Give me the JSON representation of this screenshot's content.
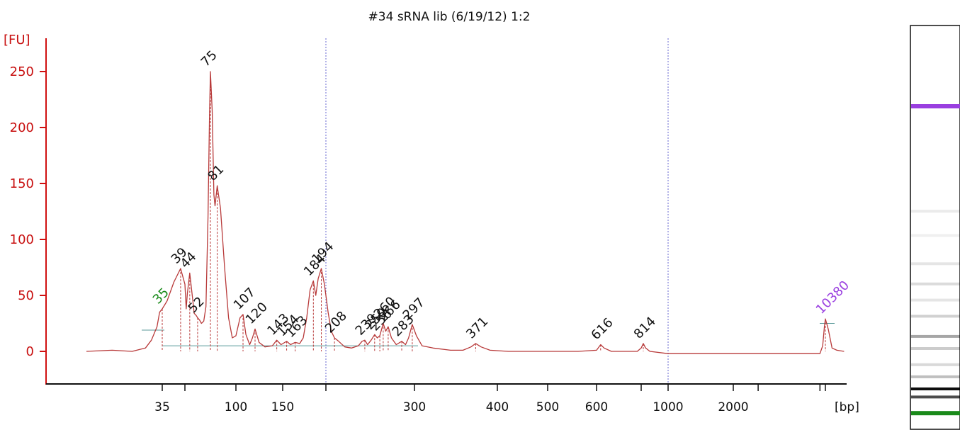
{
  "chart_data": {
    "type": "line",
    "title": "#34 sRNA lib (6/19/12) 1:2",
    "ylabel": "[FU]",
    "xlabel": "[bp]",
    "ylim": [
      -28,
      280
    ],
    "y_ticks": [
      0,
      50,
      100,
      150,
      200,
      250
    ],
    "x_ticks": [
      "35",
      "100",
      "150",
      "300",
      "400",
      "500",
      "600",
      "1000",
      "2000"
    ],
    "series": [
      {
        "points": [
          {
            "x": 15,
            "y": 0
          },
          {
            "x": 20,
            "y": 1
          },
          {
            "x": 25,
            "y": 0
          },
          {
            "x": 29,
            "y": 3
          },
          {
            "x": 31,
            "y": 10
          },
          {
            "x": 33,
            "y": 22
          },
          {
            "x": 34,
            "y": 35
          },
          {
            "x": 35,
            "y": 38
          },
          {
            "x": 36,
            "y": 45
          },
          {
            "x": 37.5,
            "y": 62
          },
          {
            "x": 39,
            "y": 74
          },
          {
            "x": 40,
            "y": 60
          },
          {
            "x": 41,
            "y": 38
          },
          {
            "x": 42,
            "y": 52
          },
          {
            "x": 44,
            "y": 70
          },
          {
            "x": 46,
            "y": 52
          },
          {
            "x": 48,
            "y": 34
          },
          {
            "x": 50,
            "y": 32
          },
          {
            "x": 52,
            "y": 30
          },
          {
            "x": 55,
            "y": 28
          },
          {
            "x": 58,
            "y": 25
          },
          {
            "x": 62,
            "y": 27
          },
          {
            "x": 66,
            "y": 40
          },
          {
            "x": 70,
            "y": 120
          },
          {
            "x": 73,
            "y": 210
          },
          {
            "x": 75,
            "y": 250
          },
          {
            "x": 76.5,
            "y": 215
          },
          {
            "x": 78,
            "y": 140
          },
          {
            "x": 79,
            "y": 130
          },
          {
            "x": 81,
            "y": 148
          },
          {
            "x": 84,
            "y": 128
          },
          {
            "x": 88,
            "y": 75
          },
          {
            "x": 92,
            "y": 30
          },
          {
            "x": 96,
            "y": 12
          },
          {
            "x": 100,
            "y": 14
          },
          {
            "x": 104,
            "y": 30
          },
          {
            "x": 107,
            "y": 33
          },
          {
            "x": 110,
            "y": 15
          },
          {
            "x": 114,
            "y": 6
          },
          {
            "x": 117,
            "y": 12
          },
          {
            "x": 120,
            "y": 20
          },
          {
            "x": 124,
            "y": 8
          },
          {
            "x": 130,
            "y": 4
          },
          {
            "x": 138,
            "y": 5
          },
          {
            "x": 143,
            "y": 10
          },
          {
            "x": 148,
            "y": 6
          },
          {
            "x": 154,
            "y": 9
          },
          {
            "x": 158,
            "y": 6
          },
          {
            "x": 163,
            "y": 8
          },
          {
            "x": 168,
            "y": 7
          },
          {
            "x": 172,
            "y": 12
          },
          {
            "x": 176,
            "y": 30
          },
          {
            "x": 180,
            "y": 55
          },
          {
            "x": 184,
            "y": 63
          },
          {
            "x": 187,
            "y": 50
          },
          {
            "x": 190,
            "y": 65
          },
          {
            "x": 194,
            "y": 74
          },
          {
            "x": 198,
            "y": 60
          },
          {
            "x": 202,
            "y": 35
          },
          {
            "x": 205,
            "y": 18
          },
          {
            "x": 208,
            "y": 12
          },
          {
            "x": 212,
            "y": 9
          },
          {
            "x": 218,
            "y": 4
          },
          {
            "x": 225,
            "y": 3
          },
          {
            "x": 232,
            "y": 5
          },
          {
            "x": 236,
            "y": 9
          },
          {
            "x": 239,
            "y": 10
          },
          {
            "x": 242,
            "y": 6
          },
          {
            "x": 246,
            "y": 10
          },
          {
            "x": 250,
            "y": 15
          },
          {
            "x": 253,
            "y": 12
          },
          {
            "x": 256,
            "y": 14
          },
          {
            "x": 260,
            "y": 25
          },
          {
            "x": 263,
            "y": 18
          },
          {
            "x": 266,
            "y": 22
          },
          {
            "x": 270,
            "y": 12
          },
          {
            "x": 276,
            "y": 6
          },
          {
            "x": 283,
            "y": 9
          },
          {
            "x": 288,
            "y": 6
          },
          {
            "x": 292,
            "y": 12
          },
          {
            "x": 297,
            "y": 24
          },
          {
            "x": 302,
            "y": 14
          },
          {
            "x": 308,
            "y": 5
          },
          {
            "x": 320,
            "y": 3
          },
          {
            "x": 340,
            "y": 1
          },
          {
            "x": 355,
            "y": 1
          },
          {
            "x": 365,
            "y": 4
          },
          {
            "x": 371,
            "y": 7
          },
          {
            "x": 378,
            "y": 4
          },
          {
            "x": 390,
            "y": 1
          },
          {
            "x": 420,
            "y": 0
          },
          {
            "x": 460,
            "y": 0
          },
          {
            "x": 500,
            "y": 0
          },
          {
            "x": 560,
            "y": 0
          },
          {
            "x": 600,
            "y": 1
          },
          {
            "x": 616,
            "y": 6
          },
          {
            "x": 630,
            "y": 3
          },
          {
            "x": 660,
            "y": 0
          },
          {
            "x": 720,
            "y": 0
          },
          {
            "x": 780,
            "y": 0
          },
          {
            "x": 800,
            "y": 3
          },
          {
            "x": 814,
            "y": 7
          },
          {
            "x": 830,
            "y": 3
          },
          {
            "x": 860,
            "y": 0
          },
          {
            "x": 1000,
            "y": -2
          },
          {
            "x": 1500,
            "y": -2
          },
          {
            "x": 3000,
            "y": -2
          },
          {
            "x": 6000,
            "y": -2
          },
          {
            "x": 8500,
            "y": -2
          },
          {
            "x": 9400,
            "y": 5
          },
          {
            "x": 10000,
            "y": 22
          },
          {
            "x": 10380,
            "y": 29
          },
          {
            "x": 10800,
            "y": 20
          },
          {
            "x": 11400,
            "y": 3
          },
          {
            "x": 12200,
            "y": 1
          },
          {
            "x": 13500,
            "y": 0
          }
        ]
      }
    ],
    "peaks": [
      {
        "label": "35",
        "x": 35,
        "y": 38,
        "color": "#1a8a1a"
      },
      {
        "label": "39",
        "x": 39,
        "y": 74,
        "color": "#111111"
      },
      {
        "label": "44",
        "x": 44,
        "y": 70,
        "color": "#111111"
      },
      {
        "label": "52",
        "x": 52,
        "y": 30,
        "color": "#111111"
      },
      {
        "label": "75",
        "x": 75,
        "y": 250,
        "color": "#111111"
      },
      {
        "label": "81",
        "x": 81,
        "y": 148,
        "color": "#111111"
      },
      {
        "label": "107",
        "x": 107,
        "y": 33,
        "color": "#111111"
      },
      {
        "label": "120",
        "x": 120,
        "y": 20,
        "color": "#111111"
      },
      {
        "label": "143",
        "x": 143,
        "y": 10,
        "color": "#111111"
      },
      {
        "label": "154",
        "x": 154,
        "y": 9,
        "color": "#111111"
      },
      {
        "label": "163",
        "x": 163,
        "y": 8,
        "color": "#111111"
      },
      {
        "label": "184",
        "x": 184,
        "y": 63,
        "color": "#111111"
      },
      {
        "label": "194",
        "x": 194,
        "y": 74,
        "color": "#111111"
      },
      {
        "label": "208",
        "x": 208,
        "y": 12,
        "color": "#111111"
      },
      {
        "label": "239",
        "x": 239,
        "y": 10,
        "color": "#111111"
      },
      {
        "label": "250",
        "x": 250,
        "y": 15,
        "color": "#111111"
      },
      {
        "label": "256",
        "x": 256,
        "y": 14,
        "color": "#111111"
      },
      {
        "label": "260",
        "x": 260,
        "y": 25,
        "color": "#111111"
      },
      {
        "label": "266",
        "x": 266,
        "y": 22,
        "color": "#111111"
      },
      {
        "label": "283",
        "x": 283,
        "y": 9,
        "color": "#111111"
      },
      {
        "label": "297",
        "x": 297,
        "y": 24,
        "color": "#111111"
      },
      {
        "label": "371",
        "x": 371,
        "y": 7,
        "color": "#111111"
      },
      {
        "label": "616",
        "x": 616,
        "y": 6,
        "color": "#111111"
      },
      {
        "label": "814",
        "x": 814,
        "y": 7,
        "color": "#111111"
      },
      {
        "label": "10380",
        "x": 10380,
        "y": 29,
        "color": "#9a3fe0"
      }
    ],
    "marker_lines_bp": [
      200,
      1000
    ],
    "colors": {
      "trace": "#b83a3a",
      "axis": "#d01010",
      "marker": "#6a6ad0",
      "upper_marker": "#9a3fe0",
      "lower_marker": "#1a8a1a"
    }
  },
  "gel_lane": {
    "bands": [
      {
        "pos": 0.2,
        "intensity": 1.0,
        "color": "#9a3fe0"
      },
      {
        "pos": 0.46,
        "intensity": 0.08,
        "color": "#000000"
      },
      {
        "pos": 0.52,
        "intensity": 0.06,
        "color": "#000000"
      },
      {
        "pos": 0.59,
        "intensity": 0.1,
        "color": "#000000"
      },
      {
        "pos": 0.64,
        "intensity": 0.14,
        "color": "#000000"
      },
      {
        "pos": 0.68,
        "intensity": 0.1,
        "color": "#000000"
      },
      {
        "pos": 0.72,
        "intensity": 0.18,
        "color": "#000000"
      },
      {
        "pos": 0.77,
        "intensity": 0.35,
        "color": "#000000"
      },
      {
        "pos": 0.8,
        "intensity": 0.2,
        "color": "#000000"
      },
      {
        "pos": 0.84,
        "intensity": 0.15,
        "color": "#000000"
      },
      {
        "pos": 0.87,
        "intensity": 0.25,
        "color": "#000000"
      },
      {
        "pos": 0.9,
        "intensity": 0.95,
        "color": "#000000"
      },
      {
        "pos": 0.92,
        "intensity": 0.7,
        "color": "#000000"
      },
      {
        "pos": 0.96,
        "intensity": 1.0,
        "color": "#1a8a1a"
      }
    ]
  }
}
